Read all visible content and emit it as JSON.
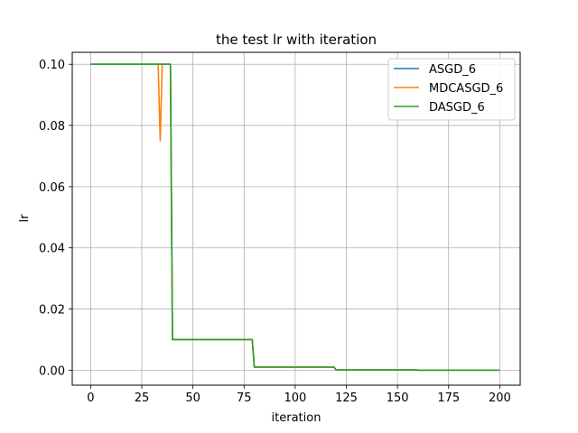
{
  "chart_data": {
    "type": "line",
    "title": "the test lr with iteration",
    "xlabel": "iteration",
    "ylabel": "lr",
    "xlim": [
      -9,
      210
    ],
    "ylim": [
      -0.0049,
      0.1039
    ],
    "xticks": [
      0,
      25,
      50,
      75,
      100,
      125,
      150,
      175,
      200
    ],
    "yticks": [
      0.0,
      0.02,
      0.04,
      0.06,
      0.08,
      0.1
    ],
    "ytick_labels": [
      "0.00",
      "0.02",
      "0.04",
      "0.06",
      "0.08",
      "0.10"
    ],
    "grid": true,
    "legend_position": "top-right",
    "series": [
      {
        "name": "ASGD_6",
        "color": "#1f77b4",
        "x": [
          0,
          39,
          40,
          79,
          80,
          119,
          120,
          159,
          160,
          200
        ],
        "y": [
          0.1,
          0.1,
          0.01,
          0.01,
          0.001,
          0.001,
          0.0001,
          0.0001,
          1e-05,
          1e-05
        ]
      },
      {
        "name": "MDCASGD_6",
        "color": "#ff7f0e",
        "x": [
          0,
          33,
          34,
          35,
          36,
          39,
          40,
          79,
          80,
          119,
          120,
          159,
          160,
          200
        ],
        "y": [
          0.1,
          0.1,
          0.075,
          0.1,
          0.1,
          0.1,
          0.01,
          0.01,
          0.001,
          0.001,
          0.0001,
          0.0001,
          1e-05,
          1e-05
        ]
      },
      {
        "name": "DASGD_6",
        "color": "#2ca02c",
        "x": [
          0,
          39,
          40,
          79,
          80,
          119,
          120,
          159,
          160,
          200
        ],
        "y": [
          0.1,
          0.1,
          0.01,
          0.01,
          0.001,
          0.001,
          0.0001,
          0.0001,
          1e-05,
          1e-05
        ]
      }
    ]
  }
}
